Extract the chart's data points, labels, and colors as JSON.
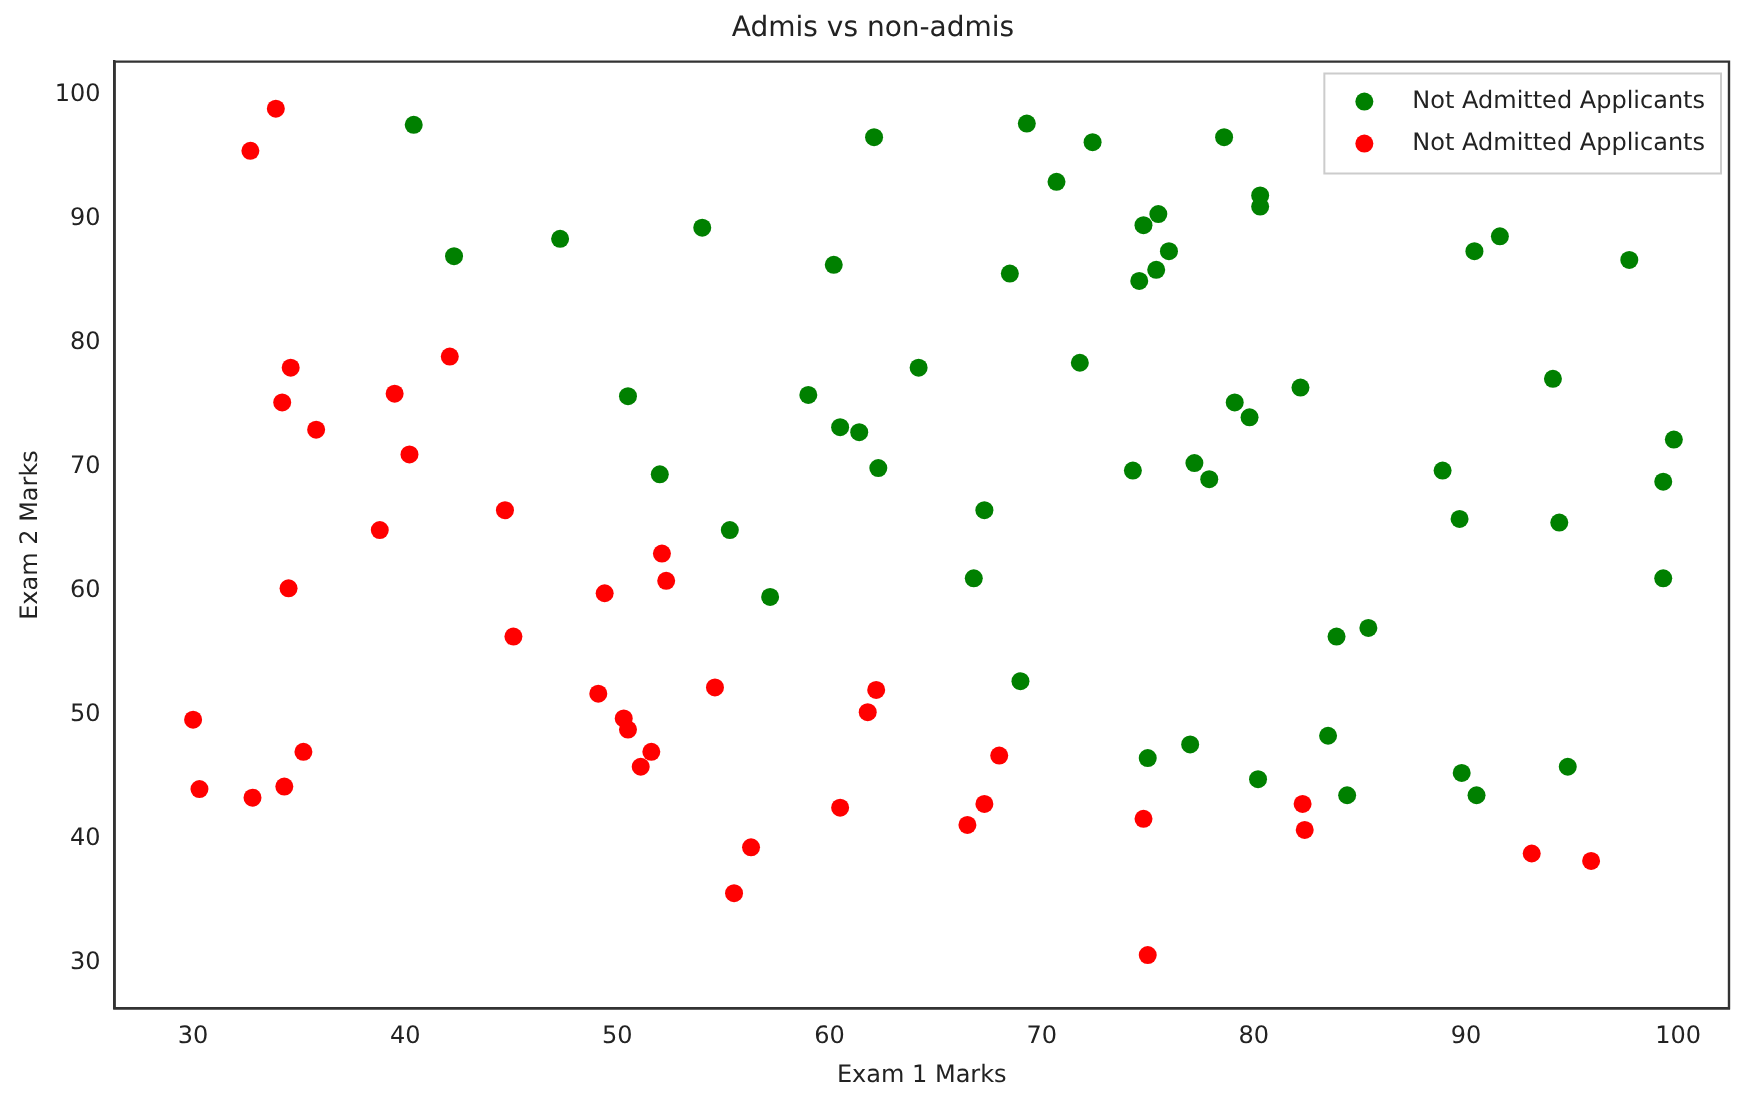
{
  "chart_data": {
    "type": "scatter",
    "title": "Admis vs non-admis",
    "xlabel": "Exam 1 Marks",
    "ylabel": "Exam 2 Marks",
    "xlim": [
      26.3,
      102.4
    ],
    "ylim": [
      26.3,
      102.7
    ],
    "xticks": [
      30,
      40,
      50,
      60,
      70,
      80,
      90,
      100
    ],
    "yticks": [
      30,
      40,
      50,
      60,
      70,
      80,
      90,
      100
    ],
    "grid": false,
    "legend": "top right",
    "marker": "circle",
    "series": [
      {
        "name": "Not Admitted Applicants",
        "color": "#008000",
        "x": [
          40.4,
          42.3,
          47.3,
          50.5,
          52,
          54,
          55.3,
          57.2,
          59,
          60.2,
          60.5,
          61.4,
          62.1,
          62.3,
          64.2,
          66.8,
          67.3,
          68.5,
          69,
          69.3,
          70.7,
          71.8,
          72.4,
          74.3,
          74.6,
          74.8,
          75,
          75.4,
          75.5,
          76,
          77,
          77.2,
          77.9,
          78.6,
          79.1,
          79.8,
          80.2,
          80.3,
          80.3,
          82.2,
          83.5,
          83.9,
          84.4,
          85.4,
          88.9,
          89.7,
          89.8,
          90.4,
          90.5,
          91.6,
          94.1,
          94.4,
          94.8,
          97.7,
          99.3,
          99.3,
          99.8
        ],
        "values": [
          97.6,
          87,
          88.4,
          75.7,
          69.4,
          89.3,
          64.9,
          59.5,
          75.8,
          86.3,
          73.2,
          72.8,
          96.6,
          69.9,
          78,
          61,
          66.5,
          85.6,
          52.7,
          97.7,
          93,
          78.4,
          96.2,
          69.7,
          85,
          89.5,
          46.5,
          85.9,
          90.4,
          87.4,
          47.6,
          70.3,
          69,
          96.6,
          75.2,
          74,
          44.8,
          91.9,
          91,
          76.4,
          48.3,
          56.3,
          43.5,
          57,
          69.7,
          65.8,
          45.3,
          87.4,
          43.5,
          88.6,
          77.1,
          65.5,
          45.8,
          86.7,
          68.8,
          61,
          72.2
        ]
      },
      {
        "name": "Not Admitted Applicants",
        "color": "#ff0000",
        "x": [
          30,
          30.3,
          32.7,
          32.8,
          33.9,
          34.2,
          34.3,
          34.5,
          34.6,
          35.2,
          35.8,
          38.8,
          39.5,
          40.2,
          42.1,
          44.7,
          45.1,
          49.1,
          49.4,
          50.3,
          50.5,
          51.1,
          51.6,
          52.1,
          52.3,
          54.6,
          55.5,
          56.3,
          60.5,
          61.8,
          62.2,
          66.5,
          67.3,
          68,
          74.8,
          75,
          82.3,
          82.4,
          93.1,
          95.9
        ],
        "values": [
          49.6,
          44,
          95.5,
          43.3,
          98.9,
          75.2,
          44.2,
          60.2,
          78,
          47,
          73,
          64.9,
          75.9,
          71,
          78.9,
          66.5,
          56.3,
          51.7,
          59.8,
          49.7,
          48.8,
          45.8,
          47,
          63,
          60.8,
          52.2,
          35.6,
          39.3,
          42.5,
          50.2,
          52,
          41.1,
          42.8,
          46.7,
          41.6,
          30.6,
          42.8,
          40.7,
          38.8,
          38.2
        ]
      }
    ]
  }
}
